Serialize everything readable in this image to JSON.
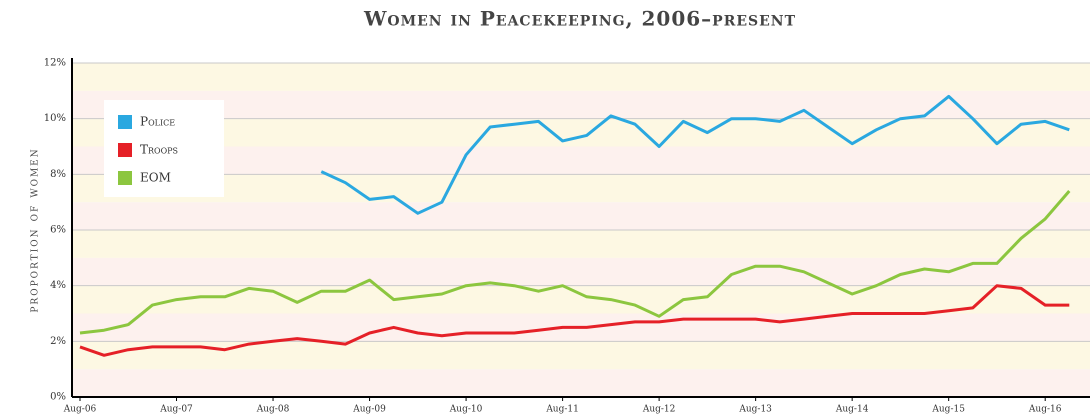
{
  "chart_data": {
    "type": "line",
    "title": "Women in Peacekeeping, 2006–present",
    "y_label": "proportion of women",
    "categories": [
      "Aug-06",
      null,
      null,
      null,
      "Aug-07",
      null,
      null,
      null,
      "Aug-08",
      null,
      null,
      null,
      "Aug-09",
      null,
      null,
      null,
      "Aug-10",
      null,
      null,
      null,
      "Aug-11",
      null,
      null,
      null,
      "Aug-12",
      null,
      null,
      null,
      "Aug-13",
      null,
      null,
      null,
      "Aug-14",
      null,
      null,
      null,
      "Aug-15",
      null,
      null,
      null,
      "Aug-16",
      null
    ],
    "series": [
      {
        "name": "Police",
        "color": "#2aa8e0",
        "values": [
          null,
          null,
          null,
          null,
          null,
          null,
          null,
          null,
          null,
          null,
          8.1,
          7.7,
          7.1,
          7.2,
          6.6,
          7.0,
          8.7,
          9.7,
          9.8,
          9.9,
          9.2,
          9.4,
          10.1,
          9.8,
          9.0,
          9.9,
          9.5,
          10.0,
          10.0,
          9.9,
          10.3,
          9.7,
          9.1,
          9.6,
          10.0,
          10.1,
          10.8,
          10.0,
          9.1,
          9.8,
          9.9,
          9.6
        ]
      },
      {
        "name": "Troops",
        "color": "#e52027",
        "values": [
          1.8,
          1.5,
          1.7,
          1.8,
          1.8,
          1.8,
          1.7,
          1.9,
          2.0,
          2.1,
          2.0,
          1.9,
          2.3,
          2.5,
          2.3,
          2.2,
          2.3,
          2.3,
          2.3,
          2.4,
          2.5,
          2.5,
          2.6,
          2.7,
          2.7,
          2.8,
          2.8,
          2.8,
          2.8,
          2.7,
          2.8,
          2.9,
          3.0,
          3.0,
          3.0,
          3.0,
          3.1,
          3.2,
          4.0,
          3.9,
          3.3,
          3.3
        ]
      },
      {
        "name": "EOM",
        "color": "#8cc63f",
        "values": [
          2.3,
          2.4,
          2.6,
          3.3,
          3.5,
          3.6,
          3.6,
          3.9,
          3.8,
          3.4,
          3.8,
          3.8,
          4.2,
          3.5,
          3.6,
          3.7,
          4.0,
          4.1,
          4.0,
          3.8,
          4.0,
          3.6,
          3.5,
          3.3,
          2.9,
          3.5,
          3.6,
          4.4,
          4.7,
          4.7,
          4.5,
          4.1,
          3.7,
          4.0,
          4.4,
          4.6,
          4.5,
          4.8,
          4.8,
          5.7,
          6.4,
          7.4
        ]
      }
    ],
    "ylim": [
      0,
      12
    ],
    "yticks": [
      {
        "value": 0,
        "label": "0%"
      },
      {
        "value": 2,
        "label": "2%"
      },
      {
        "value": 4,
        "label": "4%"
      },
      {
        "value": 6,
        "label": "6%"
      },
      {
        "value": 8,
        "label": "8%"
      },
      {
        "value": 10,
        "label": "10%"
      },
      {
        "value": 12,
        "label": "12%"
      }
    ],
    "grid": true,
    "legend": "upper left"
  }
}
